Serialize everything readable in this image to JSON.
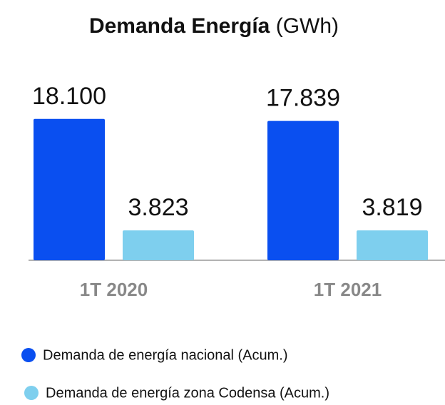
{
  "chart_data": {
    "type": "bar",
    "title": "Demanda Energía",
    "unit": "(GWh)",
    "categories": [
      "1T 2020",
      "1T 2021"
    ],
    "series": [
      {
        "name": "Demanda de energía nacional (Acum.)",
        "color": "#0a4ff0",
        "values": [
          18100,
          17839
        ],
        "value_labels": [
          "18.100",
          "17.839"
        ]
      },
      {
        "name": "Demanda de energía zona Codensa (Acum.)",
        "color": "#7ecfee",
        "values": [
          3823,
          3819
        ],
        "value_labels": [
          "3.823",
          "3.819"
        ]
      }
    ],
    "ylim": [
      0,
      20000
    ]
  }
}
